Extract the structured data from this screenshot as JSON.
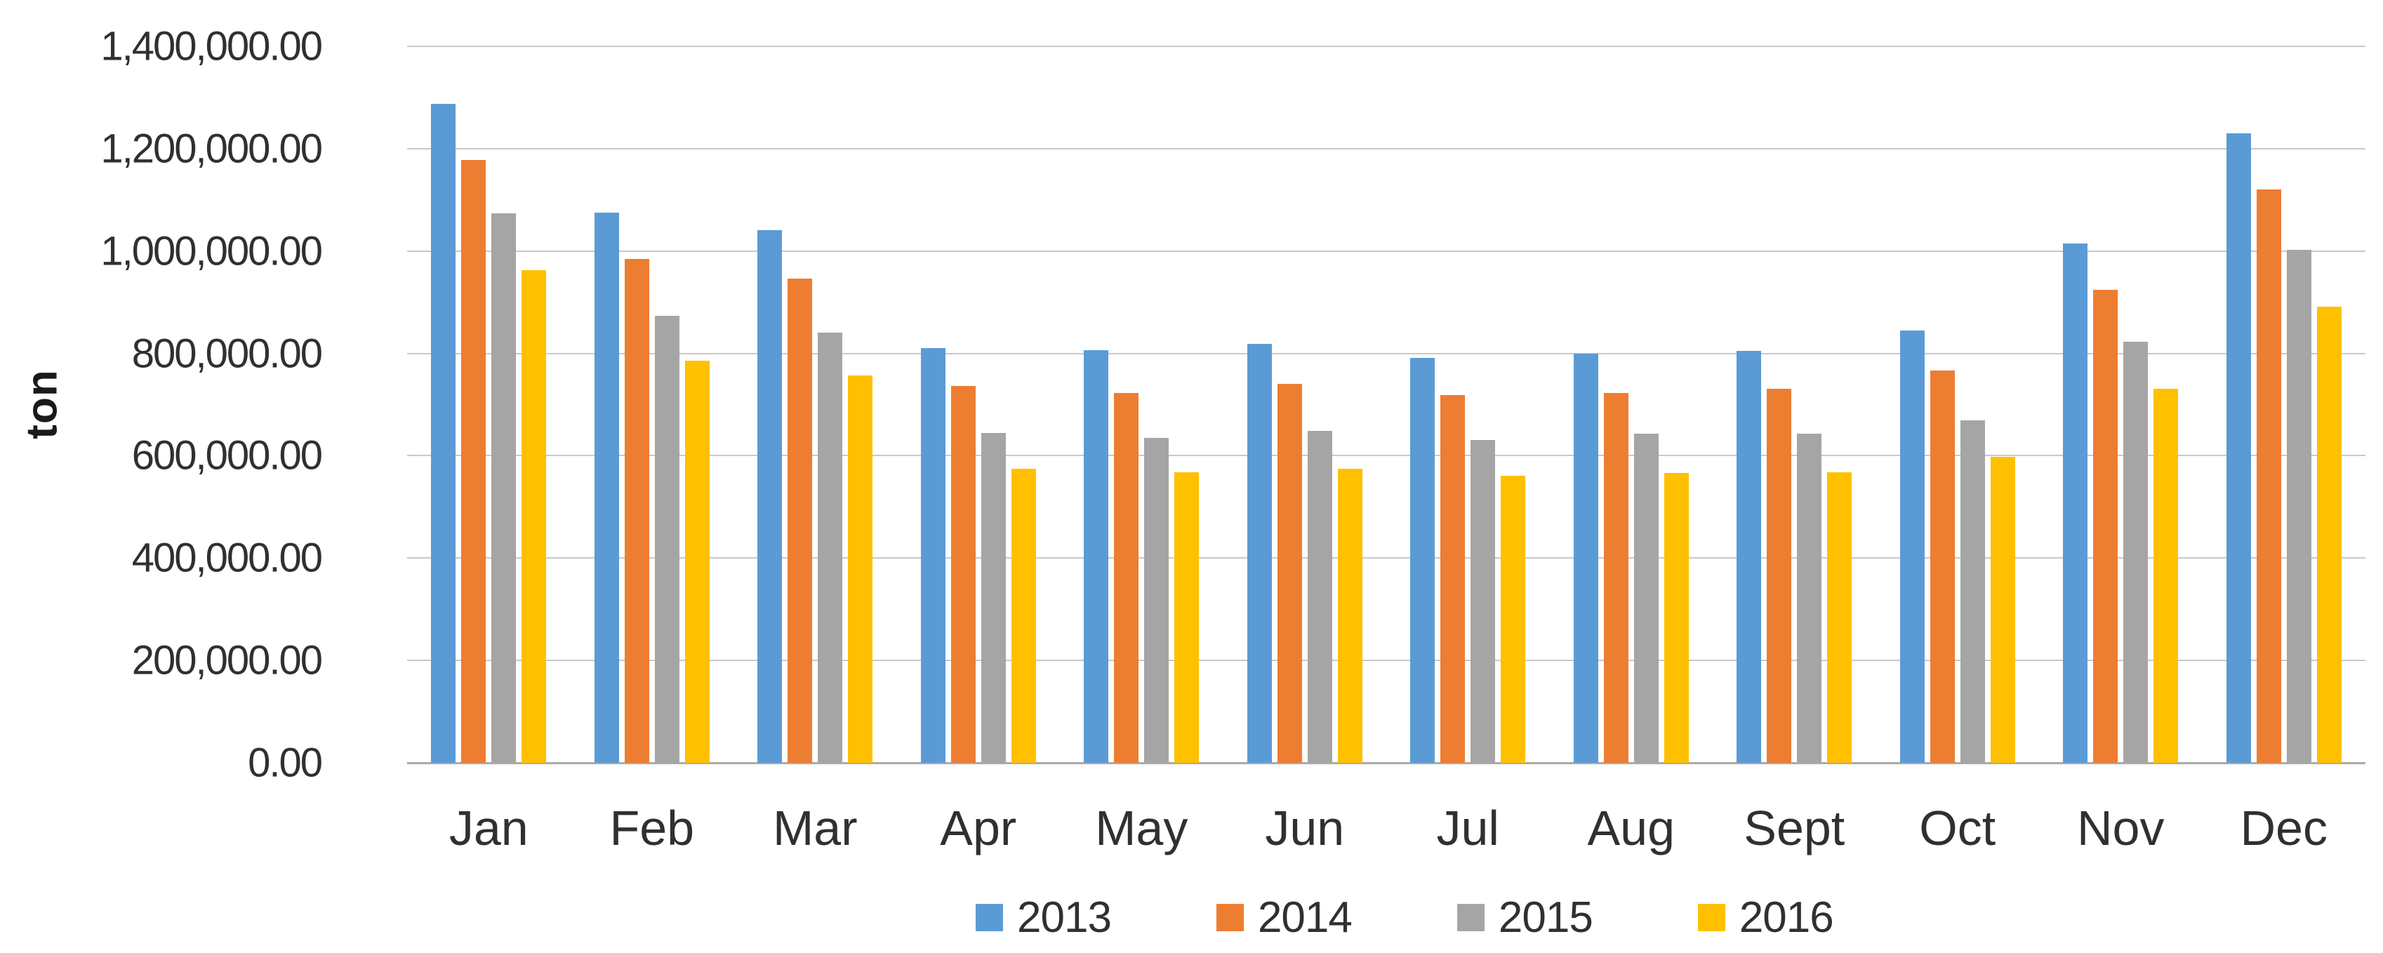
{
  "chart_data": {
    "type": "bar",
    "title": "",
    "ylabel": "ton",
    "xlabel": "",
    "grid": true,
    "legend_position": "bottom",
    "ylim": [
      0,
      1400000
    ],
    "y_tick_interval": 200000,
    "y_tick_labels": [
      "1,400,000.00",
      "1,200,000.00",
      "1,000,000.00",
      "800,000.00",
      "600,000.00",
      "400,000.00",
      "200,000.00",
      "0.00"
    ],
    "categories": [
      "Jan",
      "Feb",
      "Mar",
      "Apr",
      "May",
      "Jun",
      "Jul",
      "Aug",
      "Sept",
      "Oct",
      "Nov",
      "Dec"
    ],
    "series": [
      {
        "name": "2013",
        "color": "#5B9BD5",
        "values": [
          1287000,
          1075000,
          1041000,
          811000,
          806000,
          819000,
          791000,
          800000,
          805000,
          845000,
          1015000,
          1230000
        ]
      },
      {
        "name": "2014",
        "color": "#ED7D31",
        "values": [
          1178000,
          985000,
          946000,
          737000,
          723000,
          741000,
          718000,
          722000,
          731000,
          766000,
          924000,
          1120000
        ]
      },
      {
        "name": "2015",
        "color": "#A5A5A5",
        "values": [
          1073000,
          873000,
          841000,
          644000,
          635000,
          649000,
          631000,
          643000,
          643000,
          669000,
          823000,
          1003000
        ]
      },
      {
        "name": "2016",
        "color": "#FFC000",
        "values": [
          963000,
          786000,
          757000,
          575000,
          567000,
          575000,
          561000,
          566000,
          567000,
          598000,
          731000,
          891000
        ]
      }
    ]
  }
}
